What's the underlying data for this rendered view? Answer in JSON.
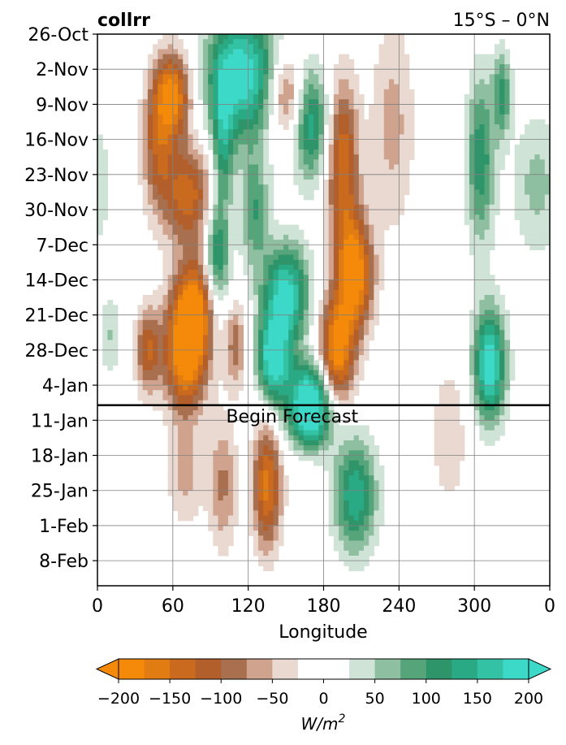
{
  "chart_data": {
    "type": "heatmap",
    "title_left": "collrr",
    "title_right": "15°S – 0°N",
    "xlabel": "Longitude",
    "x_ticks": [
      "0",
      "60",
      "120",
      "180",
      "240",
      "300",
      "0"
    ],
    "x_tick_values": [
      0,
      60,
      120,
      180,
      240,
      300,
      360
    ],
    "xlim": [
      0,
      360
    ],
    "y_ticks": [
      "26-Oct",
      "2-Nov",
      "9-Nov",
      "16-Nov",
      "23-Nov",
      "30-Nov",
      "7-Dec",
      "14-Dec",
      "21-Dec",
      "28-Dec",
      "4-Jan",
      "11-Jan",
      "18-Jan",
      "25-Jan",
      "1-Feb",
      "8-Feb"
    ],
    "y_tick_days": [
      0,
      7,
      14,
      21,
      28,
      35,
      42,
      49,
      56,
      63,
      70,
      77,
      84,
      91,
      98,
      105
    ],
    "ylim_days": [
      0,
      110
    ],
    "y_direction": "down",
    "forecast_day": 74,
    "annotation": "Begin Forecast",
    "grid": true,
    "colorbar": {
      "unit": "W/m",
      "unit_sup": "2",
      "ticks": [
        "−200",
        "−150",
        "−100",
        "−50",
        "0",
        "50",
        "100",
        "150",
        "200"
      ],
      "tick_values": [
        -200,
        -150,
        -100,
        -50,
        0,
        50,
        100,
        150,
        200
      ],
      "levels": [
        -200,
        -175,
        -150,
        -125,
        -100,
        -75,
        -50,
        -25,
        25,
        50,
        75,
        100,
        125,
        150,
        175,
        200
      ],
      "colors": [
        "#f58a0a",
        "#e07c12",
        "#c96a1e",
        "#b35f2b",
        "#a8704f",
        "#cfa38e",
        "#e9d9d0",
        "#ffffff",
        "#cfe3d7",
        "#8fbfa1",
        "#56a57a",
        "#2e956a",
        "#2aaa84",
        "#33c2a3",
        "#3dd9c8"
      ],
      "under_color": "#f58a0a",
      "over_color": "#3dd9c8",
      "extend": "both"
    },
    "features": [
      {
        "lon": 60,
        "day": 12,
        "value": -180,
        "wlon": 10,
        "wday": 6
      },
      {
        "lon": 72,
        "day": 32,
        "value": -140,
        "wlon": 14,
        "wday": 7
      },
      {
        "lon": 48,
        "day": 22,
        "value": -110,
        "wlon": 9,
        "wday": 9
      },
      {
        "lon": 78,
        "day": 54,
        "value": -160,
        "wlon": 12,
        "wday": 7
      },
      {
        "lon": 70,
        "day": 64,
        "value": -200,
        "wlon": 12,
        "wday": 8
      },
      {
        "lon": 40,
        "day": 63,
        "value": -120,
        "wlon": 7,
        "wday": 6
      },
      {
        "lon": 100,
        "day": 22,
        "value": 110,
        "wlon": 6,
        "wday": 10
      },
      {
        "lon": 115,
        "day": 8,
        "value": 200,
        "wlon": 20,
        "wday": 9
      },
      {
        "lon": 95,
        "day": 45,
        "value": 140,
        "wlon": 7,
        "wday": 8
      },
      {
        "lon": 150,
        "day": 52,
        "value": 190,
        "wlon": 13,
        "wday": 7
      },
      {
        "lon": 140,
        "day": 65,
        "value": 200,
        "wlon": 9,
        "wday": 6
      },
      {
        "lon": 170,
        "day": 72,
        "value": 200,
        "wlon": 13,
        "wday": 5
      },
      {
        "lon": 170,
        "day": 18,
        "value": 140,
        "wlon": 10,
        "wday": 8
      },
      {
        "lon": 125,
        "day": 35,
        "value": 100,
        "wlon": 8,
        "wday": 8
      },
      {
        "lon": 150,
        "day": 12,
        "value": -120,
        "wlon": 10,
        "wday": 6
      },
      {
        "lon": 195,
        "day": 26,
        "value": -150,
        "wlon": 9,
        "wday": 12
      },
      {
        "lon": 205,
        "day": 48,
        "value": -200,
        "wlon": 10,
        "wday": 8
      },
      {
        "lon": 190,
        "day": 64,
        "value": -200,
        "wlon": 10,
        "wday": 8
      },
      {
        "lon": 110,
        "day": 62,
        "value": -90,
        "wlon": 6,
        "wday": 6
      },
      {
        "lon": 305,
        "day": 25,
        "value": 120,
        "wlon": 8,
        "wday": 12
      },
      {
        "lon": 312,
        "day": 66,
        "value": 200,
        "wlon": 9,
        "wday": 8
      },
      {
        "lon": 322,
        "day": 12,
        "value": 110,
        "wlon": 5,
        "wday": 6
      },
      {
        "lon": 135,
        "day": 90,
        "value": -160,
        "wlon": 8,
        "wday": 9
      },
      {
        "lon": 100,
        "day": 90,
        "value": -80,
        "wlon": 8,
        "wday": 9
      },
      {
        "lon": 70,
        "day": 88,
        "value": -60,
        "wlon": 10,
        "wday": 7
      },
      {
        "lon": 205,
        "day": 92,
        "value": 150,
        "wlon": 12,
        "wday": 8
      },
      {
        "lon": 170,
        "day": 78,
        "value": 110,
        "wlon": 14,
        "wday": 4
      },
      {
        "lon": 350,
        "day": 30,
        "value": 60,
        "wlon": 14,
        "wday": 10
      },
      {
        "lon": 10,
        "day": 60,
        "value": 50,
        "wlon": 6,
        "wday": 6
      },
      {
        "lon": 235,
        "day": 18,
        "value": -60,
        "wlon": 12,
        "wday": 15
      },
      {
        "lon": 280,
        "day": 80,
        "value": -40,
        "wlon": 12,
        "wday": 12
      }
    ]
  }
}
